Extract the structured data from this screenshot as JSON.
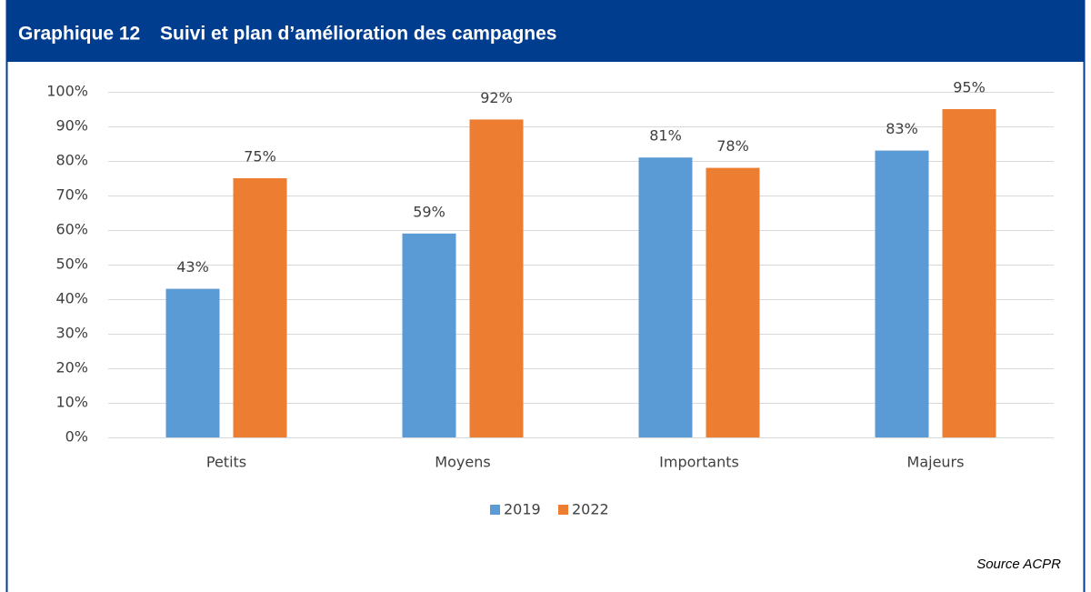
{
  "chart_data": {
    "type": "bar",
    "figure_label": "Graphique 12",
    "title": "Suivi et plan d’amélioration des campagnes",
    "source": "Source ACPR",
    "categories": [
      "Petits",
      "Moyens",
      "Importants",
      "Majeurs"
    ],
    "series": [
      {
        "name": "2019",
        "color": "#5b9bd5",
        "values": [
          43,
          59,
          81,
          83
        ],
        "value_labels": [
          "43%",
          "59%",
          "81%",
          "83%"
        ]
      },
      {
        "name": "2022",
        "color": "#ed7d31",
        "values": [
          75,
          92,
          78,
          95
        ],
        "value_labels": [
          "75%",
          "92%",
          "78%",
          "95%"
        ]
      }
    ],
    "ylim": [
      0,
      100
    ],
    "yticks": [
      {
        "value": 0,
        "label": "0%"
      },
      {
        "value": 10,
        "label": "10%"
      },
      {
        "value": 20,
        "label": "20%"
      },
      {
        "value": 30,
        "label": "30%"
      },
      {
        "value": 40,
        "label": "40%"
      },
      {
        "value": 50,
        "label": "50%"
      },
      {
        "value": 60,
        "label": "60%"
      },
      {
        "value": 70,
        "label": "70%"
      },
      {
        "value": 80,
        "label": "80%"
      },
      {
        "value": 90,
        "label": "90%"
      },
      {
        "value": 100,
        "label": "100%"
      }
    ],
    "grid": true,
    "legend": "bottom"
  }
}
